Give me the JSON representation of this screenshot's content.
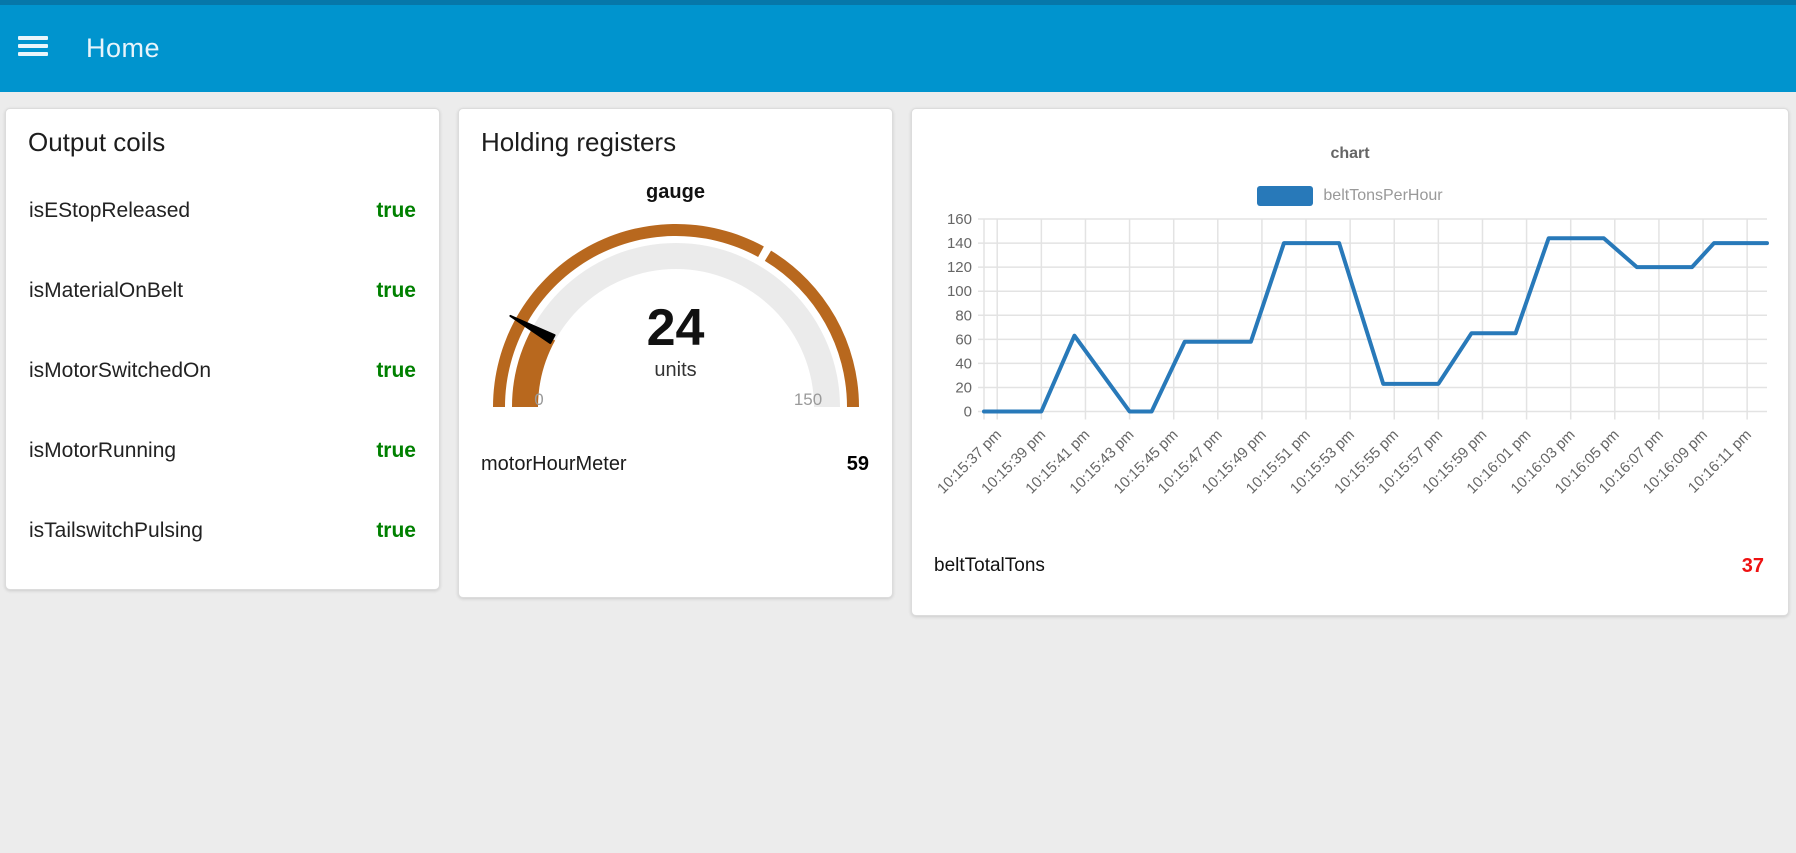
{
  "header": {
    "title": "Home",
    "menu_icon": "hamburger-icon"
  },
  "theme": {
    "header_bg": "#0094CE",
    "header_top_strip": "#0677A9",
    "page_bg": "#ececec",
    "card_bg": "#ffffff",
    "true_green": "#008000",
    "value_red": "#ee1111",
    "gauge_color": "#B8681E",
    "gauge_track": "#ebebeb",
    "chart_line": "#2879B9",
    "grid_color": "#e3e3e3",
    "axis_text": "#666666",
    "legend_text": "#999999"
  },
  "output_coils": {
    "title": "Output coils",
    "rows": [
      {
        "label": "isEStopReleased",
        "value": "true"
      },
      {
        "label": "isMaterialOnBelt",
        "value": "true"
      },
      {
        "label": "isMotorSwitchedOn",
        "value": "true"
      },
      {
        "label": "isMotorRunning",
        "value": "true"
      },
      {
        "label": "isTailswitchPulsing",
        "value": "true"
      }
    ]
  },
  "holding_registers": {
    "title": "Holding registers",
    "gauge": {
      "title": "gauge",
      "value": 24,
      "units": "units",
      "min": 0,
      "max": 150,
      "outer_gap_value": 100
    },
    "rows": [
      {
        "label": "motorHourMeter",
        "value": "59"
      }
    ]
  },
  "chart_card": {
    "title": "chart",
    "legend": [
      {
        "name": "beltTonsPerHour"
      }
    ],
    "rows": [
      {
        "label": "beltTotalTons",
        "value": "37"
      }
    ]
  },
  "chart_data": {
    "type": "line",
    "title": "chart",
    "x_type": "time",
    "grid": true,
    "legend_position": "top",
    "ylim": [
      0,
      160
    ],
    "y_tick_step": 20,
    "x_range_seconds": [
      -0.6,
      34.9
    ],
    "x_tick_seconds": [
      0,
      2,
      4,
      6,
      8,
      10,
      12,
      14,
      16,
      18,
      20,
      22,
      24,
      26,
      28,
      30,
      32,
      34
    ],
    "x_tick_labels": [
      "10:15:37 pm",
      "10:15:39 pm",
      "10:15:41 pm",
      "10:15:43 pm",
      "10:15:45 pm",
      "10:15:47 pm",
      "10:15:49 pm",
      "10:15:51 pm",
      "10:15:53 pm",
      "10:15:55 pm",
      "10:15:57 pm",
      "10:15:59 pm",
      "10:16:01 pm",
      "10:16:03 pm",
      "10:16:05 pm",
      "10:16:07 pm",
      "10:16:09 pm",
      "10:16:11 pm"
    ],
    "series": [
      {
        "name": "beltTonsPerHour",
        "color": "#2879B9",
        "points": [
          [
            -0.6,
            0
          ],
          [
            2,
            0
          ],
          [
            3.5,
            63
          ],
          [
            6,
            0
          ],
          [
            7,
            0
          ],
          [
            8.5,
            58
          ],
          [
            11.5,
            58
          ],
          [
            13,
            140
          ],
          [
            15.5,
            140
          ],
          [
            17.5,
            23
          ],
          [
            20,
            23
          ],
          [
            21.5,
            65
          ],
          [
            23.5,
            65
          ],
          [
            25,
            144
          ],
          [
            27.5,
            144
          ],
          [
            29,
            120
          ],
          [
            31.5,
            120
          ],
          [
            32.5,
            140
          ],
          [
            34.9,
            140
          ]
        ]
      }
    ]
  }
}
